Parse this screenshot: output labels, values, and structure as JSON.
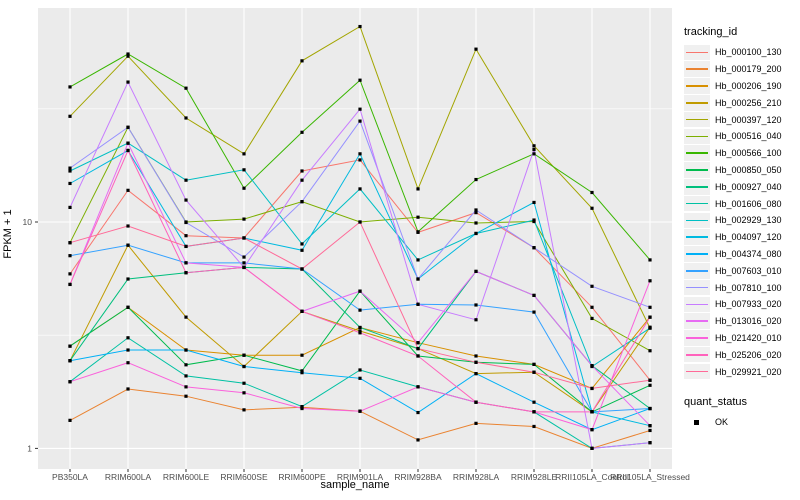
{
  "figure": {
    "y_axis": {
      "title": "FPKM + 1",
      "tick_labels": [
        "1",
        "10"
      ]
    },
    "x_axis": {
      "title": "sample_name"
    },
    "legend": {
      "title": "tracking_id",
      "quant_title": "quant_status",
      "quant_items": [
        {
          "label": "OK",
          "marker": "black-square"
        }
      ]
    },
    "theme": {
      "panel_bg": "#EBEBEB",
      "grid_color": "#FFFFFF",
      "tick_text_color": "#4D4D4D",
      "marker_color": "#000000"
    }
  },
  "chart_data": {
    "type": "line",
    "title": "",
    "xlabel": "sample_name",
    "ylabel": "FPKM + 1",
    "y_scale": "log10",
    "ylim": [
      0.81,
      88
    ],
    "y_major_ticks": [
      1,
      10
    ],
    "y_minor_ticks": [
      3.162,
      31.62
    ],
    "grid": true,
    "legend_position": "right",
    "point_marker": "black-square",
    "quant_status_all": "OK",
    "x_categories": [
      "PB350LA",
      "RRIM600LA",
      "RRIM600LE",
      "RRIM600SE",
      "RRIM600PE",
      "RRIM901LA",
      "RRIM928BA",
      "RRIM928LA",
      "RRIM928LE",
      "RRII105LA_Control",
      "RRII105LA_Stressed"
    ],
    "series": [
      {
        "name": "Hb_000100_130",
        "color": "#F8766D",
        "values": [
          5.9,
          13.8,
          8.7,
          8.5,
          16.8,
          18.8,
          9.0,
          11.0,
          7.7,
          4.2,
          2.0
        ]
      },
      {
        "name": "Hb_000179_200",
        "color": "#EA8331",
        "values": [
          1.33,
          1.83,
          1.7,
          1.48,
          1.52,
          1.46,
          1.09,
          1.29,
          1.25,
          1.0,
          1.2
        ]
      },
      {
        "name": "Hb_000206_190",
        "color": "#D89000",
        "values": [
          2.83,
          4.2,
          2.72,
          2.58,
          2.58,
          3.42,
          2.93,
          2.56,
          2.35,
          1.84,
          3.8
        ]
      },
      {
        "name": "Hb_000256_210",
        "color": "#C09B00",
        "values": [
          2.44,
          7.9,
          3.8,
          2.3,
          4.03,
          3.3,
          2.76,
          2.14,
          2.17,
          1.45,
          3.43
        ]
      },
      {
        "name": "Hb_000397_120",
        "color": "#A3A500",
        "values": [
          29.3,
          54.0,
          28.8,
          20.0,
          51.5,
          73.0,
          14.0,
          58.0,
          21.7,
          11.5,
          3.4
        ]
      },
      {
        "name": "Hb_000516_040",
        "color": "#7CAE00",
        "values": [
          8.1,
          26.2,
          10.0,
          10.3,
          12.3,
          10.0,
          10.5,
          9.9,
          10.05,
          3.75,
          2.7
        ]
      },
      {
        "name": "Hb_000566_100",
        "color": "#39B600",
        "values": [
          39.5,
          55.2,
          39.0,
          14.1,
          24.9,
          42.3,
          9.05,
          15.4,
          20.0,
          13.5,
          6.8
        ]
      },
      {
        "name": "Hb_000850_050",
        "color": "#00BB4E",
        "values": [
          2.83,
          4.2,
          2.34,
          2.58,
          2.2,
          4.95,
          2.56,
          2.4,
          2.35,
          1.45,
          1.9
        ]
      },
      {
        "name": "Hb_000927_040",
        "color": "#00BF7D",
        "values": [
          2.44,
          5.6,
          5.97,
          6.3,
          6.2,
          3.42,
          2.76,
          6.05,
          4.74,
          2.32,
          1.5
        ]
      },
      {
        "name": "Hb_001606_080",
        "color": "#00C1A3",
        "values": [
          1.97,
          3.08,
          2.09,
          1.94,
          1.53,
          2.22,
          1.87,
          1.6,
          1.45,
          1.0,
          1.06
        ]
      },
      {
        "name": "Hb_002929_130",
        "color": "#00BFC4",
        "values": [
          16.8,
          22.3,
          15.3,
          17.0,
          8.0,
          14.0,
          6.8,
          8.9,
          10.2,
          2.3,
          3.4
        ]
      },
      {
        "name": "Hb_004097_120",
        "color": "#00BAE0",
        "values": [
          14.8,
          20.7,
          7.8,
          8.5,
          7.5,
          20.0,
          5.6,
          8.9,
          12.2,
          1.45,
          1.26
        ]
      },
      {
        "name": "Hb_004374_080",
        "color": "#00B0F6",
        "values": [
          2.44,
          2.72,
          2.72,
          2.3,
          2.16,
          2.04,
          1.44,
          2.14,
          1.6,
          1.21,
          1.5
        ]
      },
      {
        "name": "Hb_007603_010",
        "color": "#35A2FF",
        "values": [
          7.1,
          7.9,
          6.6,
          6.6,
          6.2,
          4.08,
          4.33,
          4.3,
          4.0,
          1.45,
          1.5
        ]
      },
      {
        "name": "Hb_007810_100",
        "color": "#9590FF",
        "values": [
          17.3,
          26.2,
          9.95,
          7.0,
          12.3,
          27.9,
          5.6,
          11.3,
          7.7,
          5.2,
          4.2
        ]
      },
      {
        "name": "Hb_007933_020",
        "color": "#C77CFF",
        "values": [
          11.6,
          41.5,
          12.5,
          6.3,
          15.3,
          31.5,
          4.33,
          3.7,
          20.9,
          1.0,
          1.06
        ]
      },
      {
        "name": "Hb_013016_020",
        "color": "#E76BF3",
        "values": [
          5.3,
          22.3,
          6.6,
          6.3,
          4.03,
          4.95,
          2.93,
          6.05,
          4.74,
          2.32,
          1.26
        ]
      },
      {
        "name": "Hb_021420_010",
        "color": "#FA62DB",
        "values": [
          1.97,
          2.39,
          1.87,
          1.76,
          1.5,
          1.46,
          1.87,
          1.6,
          1.45,
          1.21,
          5.5
        ]
      },
      {
        "name": "Hb_025206_020",
        "color": "#FF62BC",
        "values": [
          5.3,
          20.7,
          5.97,
          6.3,
          4.03,
          3.24,
          2.56,
          1.6,
          1.45,
          1.45,
          3.8
        ]
      },
      {
        "name": "Hb_029921_020",
        "color": "#FF6A98",
        "values": [
          8.1,
          9.6,
          7.8,
          8.5,
          6.2,
          10.0,
          2.76,
          2.4,
          2.17,
          1.84,
          2.0
        ]
      }
    ]
  }
}
